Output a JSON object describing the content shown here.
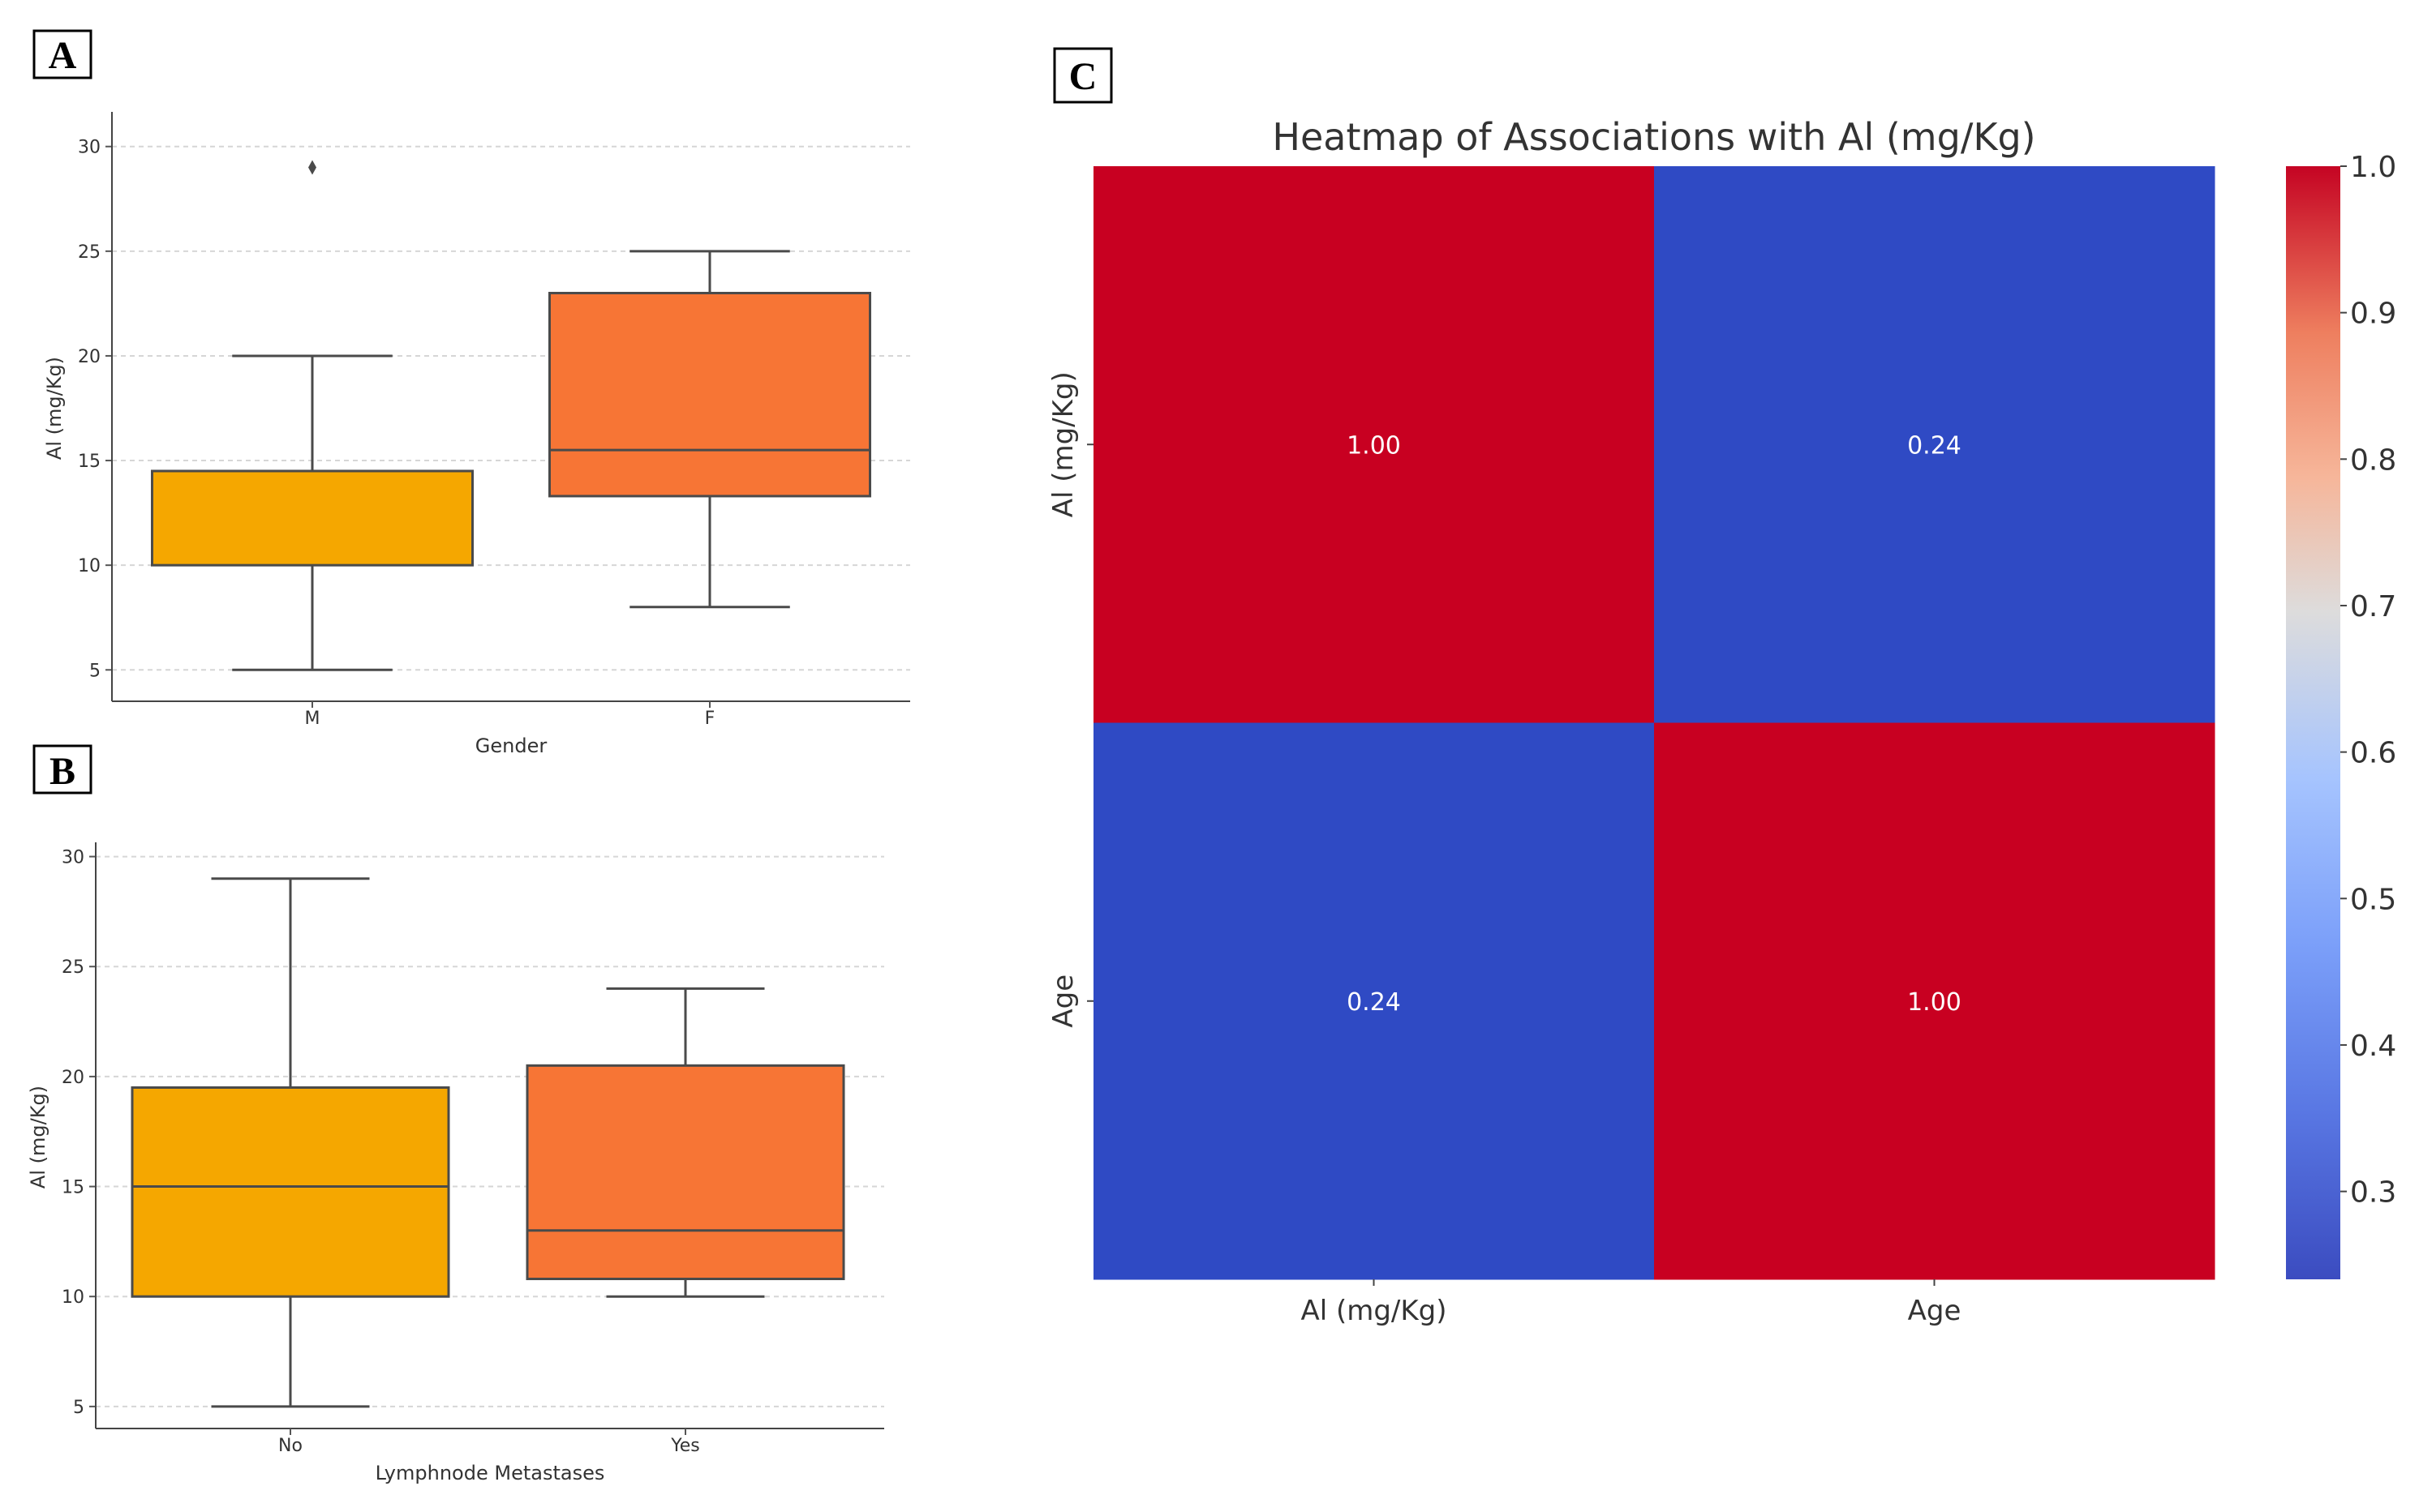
{
  "chart_data": [
    {
      "panel": "A",
      "type": "box",
      "xlabel": "Gender",
      "ylabel": "Al (mg/Kg)",
      "yticks": [
        5,
        10,
        15,
        20,
        25,
        30
      ],
      "ylim": [
        3.5,
        31.5
      ],
      "boxes": [
        {
          "label": "M",
          "whisker_low": 5,
          "q1": 10,
          "median": 14.5,
          "q3": 14.5,
          "whisker_high": 20,
          "outliers": [
            29
          ],
          "color": "#f5a700"
        },
        {
          "label": "F",
          "whisker_low": 8,
          "q1": 13.3,
          "median": 15.5,
          "q3": 23,
          "whisker_high": 25,
          "outliers": [],
          "color": "#f77535"
        }
      ]
    },
    {
      "panel": "B",
      "type": "box",
      "xlabel": "Lymphnode Metastases",
      "ylabel": "Al (mg/Kg)",
      "yticks": [
        5,
        10,
        15,
        20,
        25,
        30
      ],
      "ylim": [
        4,
        30.5
      ],
      "boxes": [
        {
          "label": "No",
          "whisker_low": 5,
          "q1": 10,
          "median": 15,
          "q3": 19.5,
          "whisker_high": 29,
          "outliers": [],
          "color": "#f5a700"
        },
        {
          "label": "Yes",
          "whisker_low": 10,
          "q1": 10.8,
          "median": 13,
          "q3": 20.5,
          "whisker_high": 24,
          "outliers": [],
          "color": "#f77535"
        }
      ]
    },
    {
      "panel": "C",
      "type": "heatmap",
      "title": "Heatmap of Associations with Al (mg/Kg)",
      "rows": [
        "Al (mg/Kg)",
        "Age"
      ],
      "cols": [
        "Al (mg/Kg)",
        "Age"
      ],
      "values": [
        [
          1.0,
          0.24
        ],
        [
          0.24,
          1.0
        ]
      ],
      "annotations": [
        [
          "1.00",
          "0.24"
        ],
        [
          "0.24",
          "1.00"
        ]
      ],
      "colorbar": {
        "min": 0.24,
        "max": 1.0,
        "ticks": [
          "0.3",
          "0.4",
          "0.5",
          "0.6",
          "0.7",
          "0.8",
          "0.9",
          "1.0"
        ]
      },
      "colors": {
        "high": "#c80021",
        "low": "#2f4ac4"
      }
    }
  ]
}
